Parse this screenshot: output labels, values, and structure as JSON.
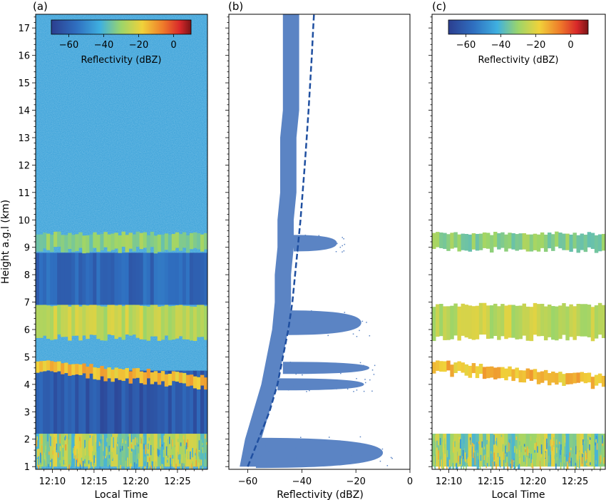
{
  "chart_data": [
    {
      "panel_label": "(a)",
      "type": "heatmap",
      "xlabel": "Local Time",
      "ylabel": "Height a.g.l (km)",
      "x_ticks": [
        "12:10",
        "12:15",
        "12:20",
        "12:25"
      ],
      "y_ticks": [
        1,
        2,
        3,
        4,
        5,
        6,
        7,
        8,
        9,
        10,
        11,
        12,
        13,
        14,
        15,
        16,
        17
      ],
      "ylim": [
        0.9,
        17.5
      ],
      "colorbar": {
        "label": "Reflectivity (dBZ)",
        "ticks": [
          -60,
          -40,
          -20,
          0
        ],
        "range": [
          -70,
          10
        ]
      },
      "background_dbz": -45,
      "layers": [
        {
          "bottom_km": 1.0,
          "top_km": 2.2,
          "dbz": -30,
          "noisy": true
        },
        {
          "bottom_km": 2.2,
          "top_km": 4.5,
          "dbz": -62
        },
        {
          "bottom_km": 3.9,
          "top_km": 4.85,
          "dbz": -15,
          "sloped": true
        },
        {
          "bottom_km": 5.7,
          "top_km": 6.9,
          "dbz": -25
        },
        {
          "bottom_km": 6.9,
          "top_km": 8.8,
          "dbz": -58
        },
        {
          "bottom_km": 8.9,
          "top_km": 9.5,
          "dbz": -32
        }
      ]
    },
    {
      "panel_label": "(b)",
      "type": "scatter",
      "xlabel": "Reflectivity (dBZ)",
      "x_ticks": [
        -60,
        -40,
        -20,
        0
      ],
      "xlim": [
        -67,
        0
      ],
      "ylim": [
        0.9,
        17.5
      ],
      "point_color": "#5b84c4",
      "threshold_curve": {
        "style": "dashed",
        "color": "#1f4fa0",
        "points": [
          [
            -60,
            1.0
          ],
          [
            -56,
            2.0
          ],
          [
            -52,
            3.0
          ],
          [
            -49,
            4.0
          ],
          [
            -47,
            5.0
          ],
          [
            -45,
            6.0
          ],
          [
            -43.5,
            7.0
          ],
          [
            -42.5,
            8.0
          ],
          [
            -41.5,
            9.0
          ],
          [
            -40.5,
            10.0
          ],
          [
            -39.7,
            11.0
          ],
          [
            -38.9,
            12.0
          ],
          [
            -38.2,
            13.0
          ],
          [
            -37.5,
            14.0
          ],
          [
            -36.9,
            15.0
          ],
          [
            -36.3,
            16.0
          ],
          [
            -35.8,
            17.0
          ],
          [
            -35.5,
            17.5
          ]
        ]
      },
      "noise_band": [
        [
          -60,
          1.0
        ],
        [
          -58,
          2.0
        ],
        [
          -55,
          3.0
        ],
        [
          -52,
          4.0
        ],
        [
          -50,
          5.0
        ],
        [
          -48,
          6.0
        ],
        [
          -47,
          7.0
        ],
        [
          -47,
          8.0
        ],
        [
          -46,
          9.0
        ],
        [
          -46,
          10.0
        ],
        [
          -45,
          11.0
        ],
        [
          -45,
          12.0
        ],
        [
          -45,
          13.0
        ],
        [
          -44,
          14.0
        ],
        [
          -44,
          15.0
        ],
        [
          -44,
          16.0
        ],
        [
          -44,
          17.0
        ],
        [
          -44,
          17.5
        ]
      ],
      "signal_lobes": [
        {
          "height_km": 9.15,
          "peak_dbz": -27,
          "half_height": 0.3
        },
        {
          "height_km": 6.25,
          "peak_dbz": -18,
          "half_height": 0.45
        },
        {
          "height_km": 4.6,
          "peak_dbz": -15,
          "half_height": 0.22
        },
        {
          "height_km": 4.0,
          "peak_dbz": -17,
          "half_height": 0.22
        },
        {
          "height_km": 1.5,
          "peak_dbz": -10,
          "half_height": 0.55
        }
      ]
    },
    {
      "panel_label": "(c)",
      "type": "heatmap",
      "xlabel": "Local Time",
      "x_ticks": [
        "12:10",
        "12:15",
        "12:20",
        "12:25"
      ],
      "ylim": [
        0.9,
        17.5
      ],
      "colorbar": {
        "label": "Reflectivity (dBZ)",
        "ticks": [
          -60,
          -40,
          -20,
          0
        ],
        "range": [
          -70,
          10
        ]
      },
      "layers": [
        {
          "bottom_km": 1.0,
          "top_km": 2.2,
          "dbz": -30,
          "noisy": true
        },
        {
          "bottom_km": 3.9,
          "top_km": 4.85,
          "dbz": -15,
          "sloped": true
        },
        {
          "bottom_km": 5.7,
          "top_km": 6.9,
          "dbz": -25
        },
        {
          "bottom_km": 8.9,
          "top_km": 9.5,
          "dbz": -32
        }
      ]
    }
  ]
}
